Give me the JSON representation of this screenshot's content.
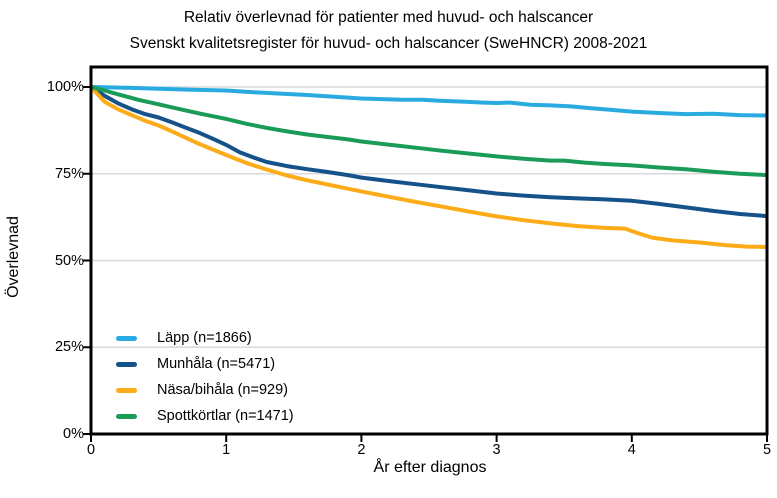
{
  "title": {
    "line1": "Relativ överlevnad för patienter med huvud- och halscancer",
    "line2": "Svenskt kvalitetsregister för huvud- och halscancer (SweHNCR) 2008-2021"
  },
  "colors": {
    "grid": "#d9d9d9",
    "panel_border": "#000000",
    "text": "#000000"
  },
  "chart_data": {
    "type": "line",
    "title": "Relativ överlevnad för patienter med huvud- och halscancer",
    "subtitle": "Svenskt kvalitetsregister för huvud- och halscancer (SweHNCR) 2008-2021",
    "xlabel": "År efter diagnos",
    "ylabel": "Överlevnad",
    "xlim": [
      0,
      5
    ],
    "ylim": [
      0,
      100
    ],
    "grid": "horizontal",
    "legend_position": "inside-left",
    "x_ticks": [
      {
        "label": "0",
        "value": 0
      },
      {
        "label": "1",
        "value": 1
      },
      {
        "label": "2",
        "value": 2
      },
      {
        "label": "3",
        "value": 3
      },
      {
        "label": "4",
        "value": 4
      },
      {
        "label": "5",
        "value": 5
      }
    ],
    "y_ticks": [
      {
        "label": "0%",
        "value": 0
      },
      {
        "label": "25%",
        "value": 25
      },
      {
        "label": "50%",
        "value": 50
      },
      {
        "label": "75%",
        "value": 75
      },
      {
        "label": "100%",
        "value": 100
      }
    ],
    "gridline_values": [
      25,
      50,
      75,
      100
    ],
    "series": [
      {
        "name": "Läpp (n=1866)",
        "color": "#29ABE2",
        "x": [
          0,
          0.1,
          0.25,
          0.5,
          0.75,
          1,
          1.2,
          1.4,
          1.6,
          1.8,
          2,
          2.15,
          2.3,
          2.45,
          2.6,
          2.75,
          2.9,
          3,
          3.1,
          3.25,
          3.4,
          3.55,
          3.7,
          3.85,
          4,
          4.2,
          4.4,
          4.6,
          4.8,
          5
        ],
        "y": [
          100,
          99.9,
          99.8,
          99.5,
          99.2,
          99,
          98.5,
          98.1,
          97.7,
          97.2,
          96.7,
          96.5,
          96.3,
          96.3,
          96.0,
          95.8,
          95.5,
          95.4,
          95.5,
          94.9,
          94.7,
          94.4,
          93.9,
          93.4,
          92.9,
          92.5,
          92.2,
          92.3,
          91.9,
          91.8
        ]
      },
      {
        "name": "Munhåla (n=5471)",
        "color": "#16528A",
        "x": [
          0,
          0.1,
          0.2,
          0.3,
          0.4,
          0.5,
          0.6,
          0.7,
          0.8,
          0.9,
          1,
          1.1,
          1.2,
          1.3,
          1.45,
          1.6,
          1.75,
          1.9,
          2,
          2.2,
          2.4,
          2.6,
          2.8,
          3,
          3.2,
          3.4,
          3.6,
          3.8,
          4,
          4.2,
          4.4,
          4.6,
          4.8,
          5
        ],
        "y": [
          100,
          97.5,
          95.3,
          93.6,
          92.2,
          91.2,
          89.8,
          88.3,
          86.8,
          85.1,
          83.3,
          81.2,
          79.7,
          78.4,
          77.2,
          76.3,
          75.5,
          74.6,
          73.9,
          72.9,
          72.0,
          71.1,
          70.2,
          69.3,
          68.7,
          68.2,
          67.9,
          67.6,
          67.2,
          66.3,
          65.3,
          64.3,
          63.4,
          62.8
        ]
      },
      {
        "name": "Näsa/bihåla (n=929)",
        "color": "#FBAC18",
        "x": [
          0,
          0.1,
          0.2,
          0.3,
          0.4,
          0.5,
          0.6,
          0.7,
          0.8,
          0.9,
          1,
          1.15,
          1.3,
          1.45,
          1.6,
          1.75,
          1.9,
          2,
          2.2,
          2.4,
          2.6,
          2.8,
          3,
          3.2,
          3.4,
          3.6,
          3.8,
          3.95,
          4.05,
          4.15,
          4.3,
          4.5,
          4.7,
          4.85,
          5
        ],
        "y": [
          100,
          95.8,
          93.6,
          91.9,
          90.3,
          88.9,
          87.2,
          85.4,
          83.6,
          82.0,
          80.4,
          78.1,
          76.2,
          74.5,
          73.1,
          71.9,
          70.7,
          69.9,
          68.4,
          66.9,
          65.5,
          64.1,
          62.7,
          61.6,
          60.7,
          59.9,
          59.4,
          59.2,
          57.8,
          56.6,
          55.8,
          55.2,
          54.4,
          54.0,
          53.9
        ]
      },
      {
        "name": "Spottkörtlar (n=1471)",
        "color": "#1A9C58",
        "x": [
          0,
          0.1,
          0.2,
          0.35,
          0.5,
          0.65,
          0.8,
          1,
          1.15,
          1.3,
          1.45,
          1.6,
          1.75,
          1.9,
          2,
          2.2,
          2.4,
          2.6,
          2.8,
          3,
          3.2,
          3.4,
          3.5,
          3.65,
          3.8,
          4,
          4.2,
          4.4,
          4.6,
          4.8,
          5
        ],
        "y": [
          100,
          99.0,
          97.9,
          96.3,
          95.0,
          93.7,
          92.4,
          90.8,
          89.4,
          88.2,
          87.2,
          86.3,
          85.6,
          84.9,
          84.3,
          83.4,
          82.5,
          81.6,
          80.8,
          80.0,
          79.3,
          78.8,
          78.8,
          78.2,
          77.8,
          77.4,
          76.8,
          76.3,
          75.6,
          75.0,
          74.6
        ]
      }
    ]
  }
}
